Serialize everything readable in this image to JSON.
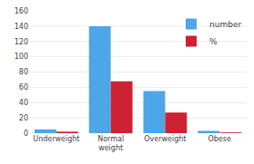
{
  "chart_data": {
    "type": "bar",
    "categories": [
      "Underweight",
      "Normal\nweight",
      "Overweight",
      "Obese"
    ],
    "series": [
      {
        "name": "number",
        "color": "#4da6e8",
        "values": [
          5,
          140,
          55,
          3
        ]
      },
      {
        "name": "%",
        "color": "#cc2233",
        "values": [
          2,
          68,
          27,
          1
        ]
      }
    ],
    "ylim": [
      0,
      160
    ],
    "yticks": [
      0,
      20,
      40,
      60,
      80,
      100,
      120,
      140,
      160
    ],
    "grid": true,
    "legend": "upper right"
  }
}
